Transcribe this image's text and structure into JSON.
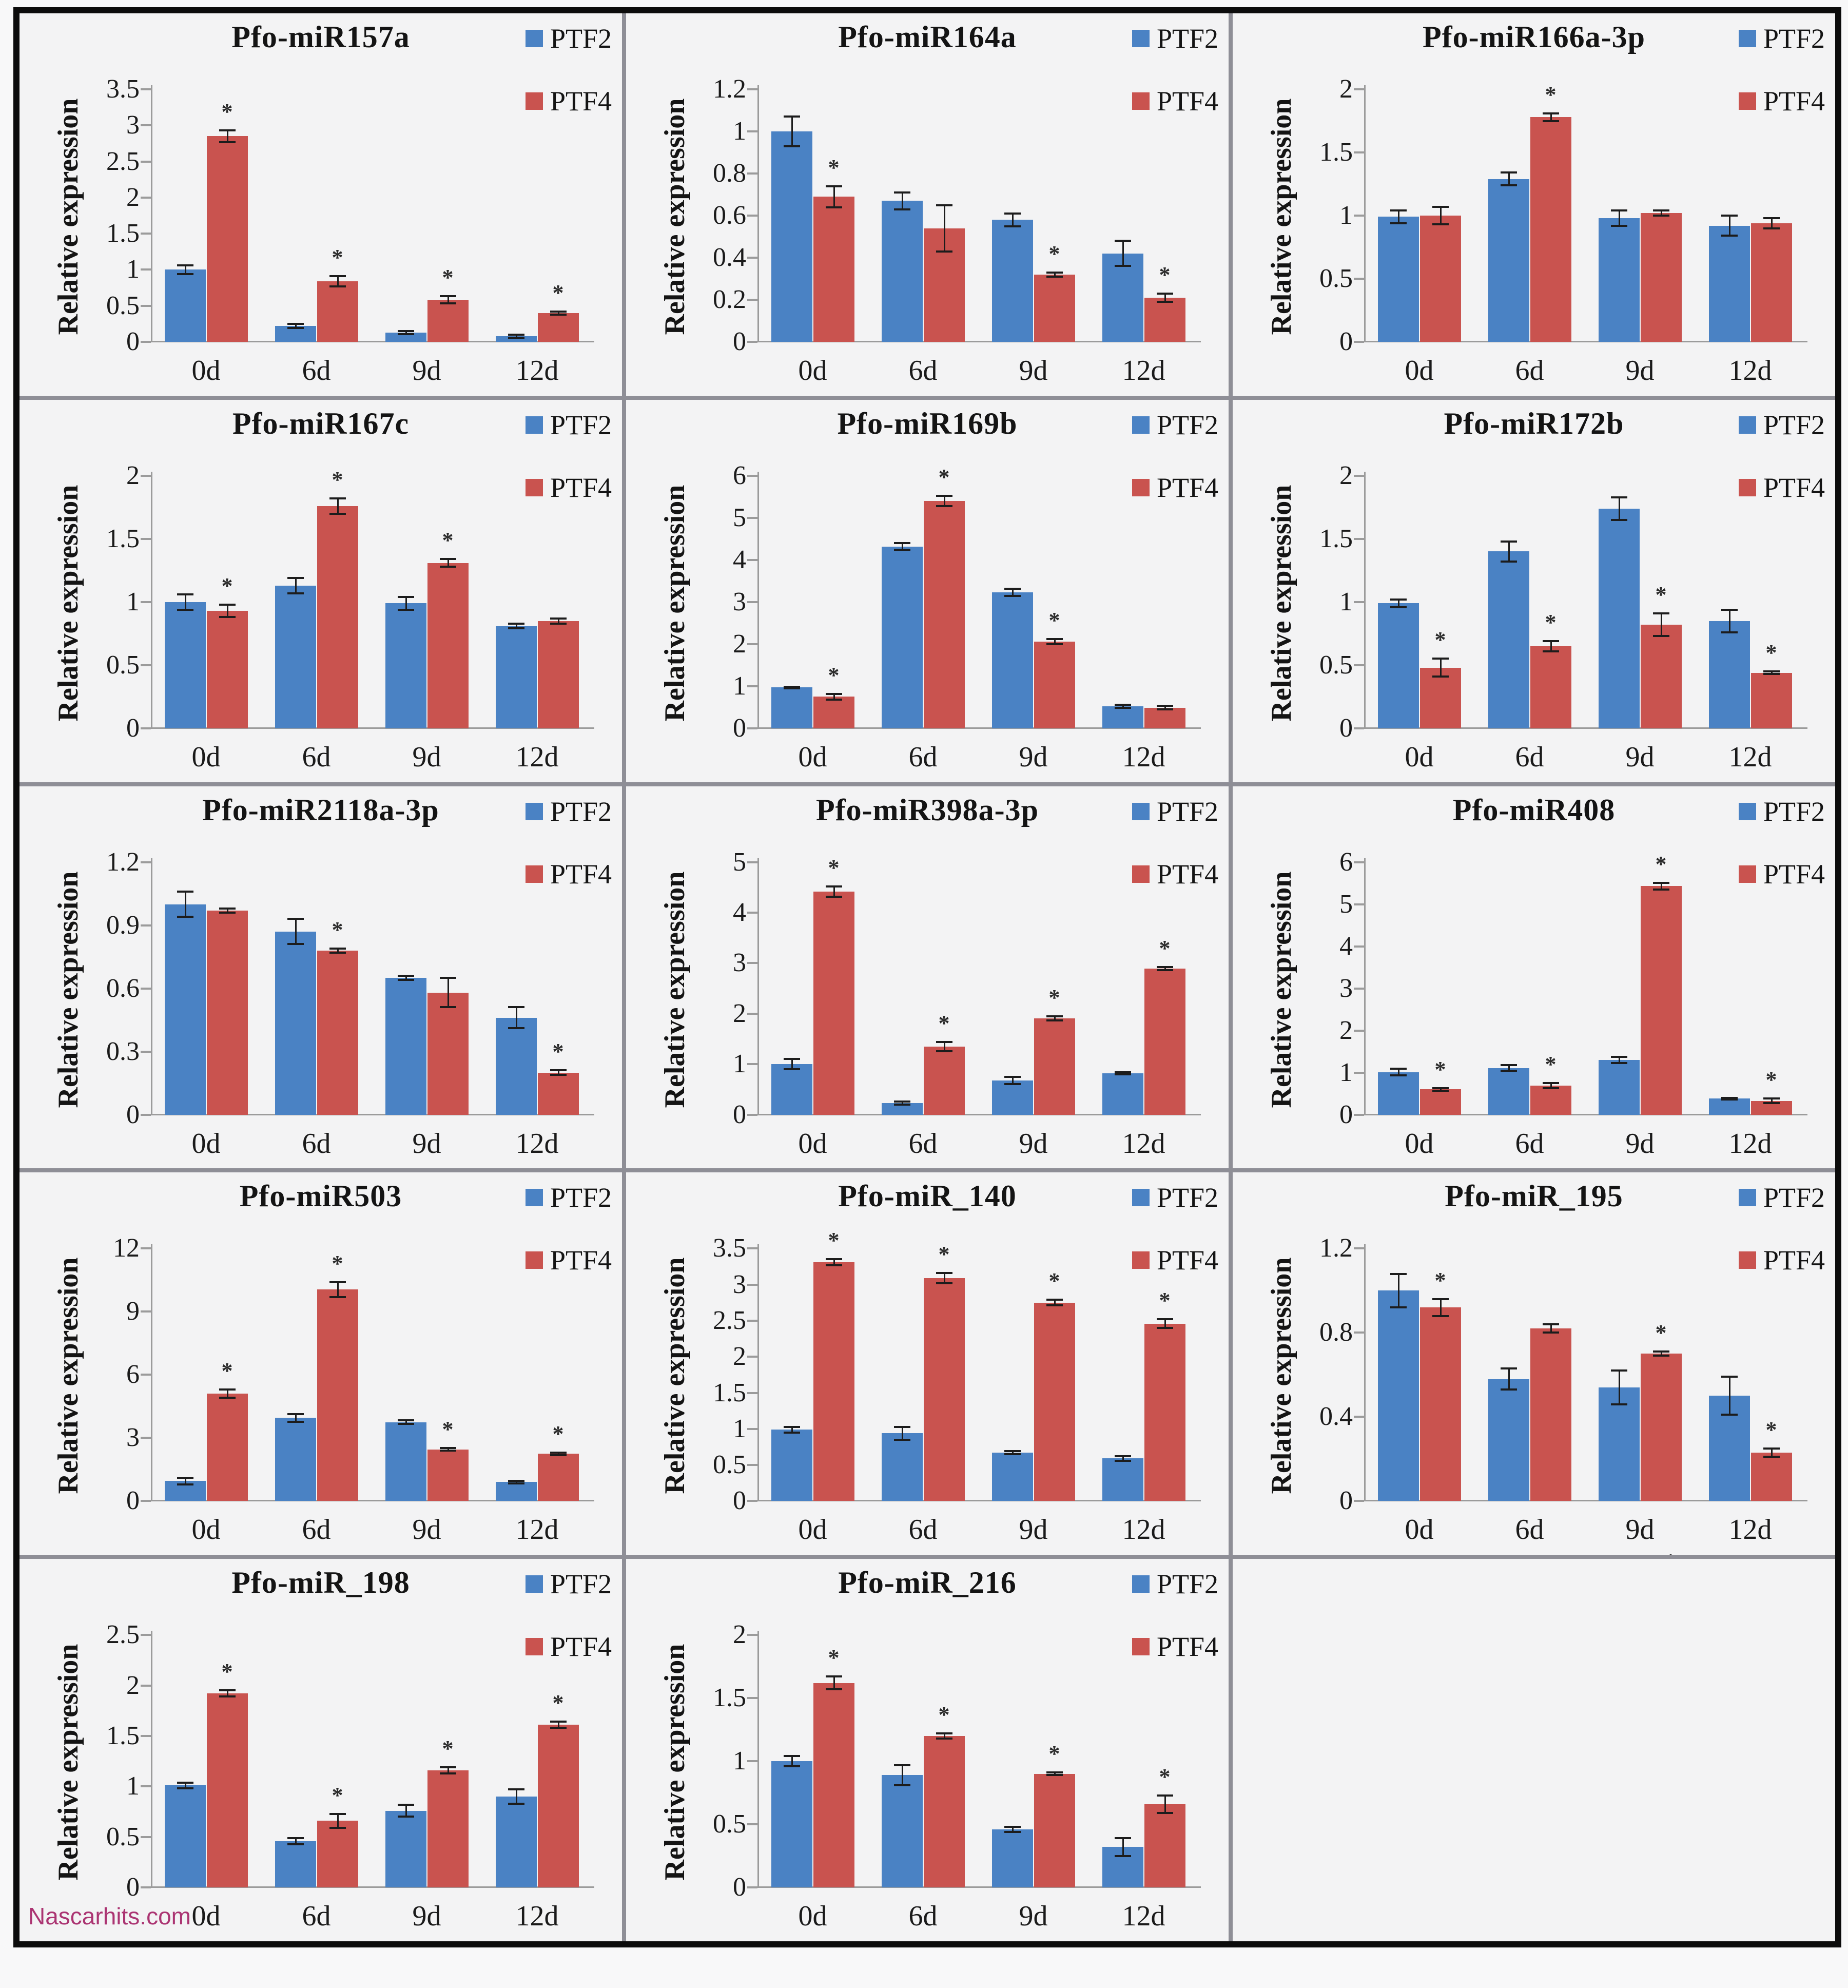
{
  "figure": {
    "watermark": "Nascarhits.com"
  },
  "colors": {
    "ptf2": "#4a82c4",
    "ptf4": "#c9534f",
    "watermark": "#ab3472",
    "cell_bg": "#f3f3f4",
    "grid_line": "#8e8e96",
    "outer_border": "#0c0c0c",
    "axis_gray": "#9b9b9b"
  },
  "legend_labels": [
    "PTF2",
    "PTF4"
  ],
  "significance_marker": "*",
  "chart_data": [
    {
      "type": "bar",
      "title": "Pfo-miR157a",
      "ylabel": "Relative expression",
      "xlabel": "",
      "categories": [
        "0d",
        "6d",
        "9d",
        "12d"
      ],
      "ylim": [
        0,
        3.5
      ],
      "yticks": [
        0,
        0.5,
        1,
        1.5,
        2,
        2.5,
        3,
        3.5
      ],
      "series": [
        {
          "name": "PTF2",
          "values": [
            1.0,
            0.22,
            0.13,
            0.08
          ],
          "errors": [
            0.06,
            0.03,
            0.02,
            0.02
          ],
          "sig": [
            false,
            false,
            false,
            false
          ]
        },
        {
          "name": "PTF4",
          "values": [
            2.85,
            0.84,
            0.58,
            0.4
          ],
          "errors": [
            0.08,
            0.07,
            0.05,
            0.02
          ],
          "sig": [
            true,
            true,
            true,
            true
          ]
        }
      ]
    },
    {
      "type": "bar",
      "title": "Pfo-miR164a",
      "ylabel": "Relative expression",
      "xlabel": "",
      "categories": [
        "0d",
        "6d",
        "9d",
        "12d"
      ],
      "ylim": [
        0,
        1.2
      ],
      "yticks": [
        0,
        0.2,
        0.4,
        0.6,
        0.8,
        1,
        1.2
      ],
      "series": [
        {
          "name": "PTF2",
          "values": [
            1.0,
            0.67,
            0.58,
            0.42
          ],
          "errors": [
            0.07,
            0.04,
            0.03,
            0.06
          ],
          "sig": [
            false,
            false,
            false,
            false
          ]
        },
        {
          "name": "PTF4",
          "values": [
            0.69,
            0.54,
            0.32,
            0.21
          ],
          "errors": [
            0.05,
            0.11,
            0.01,
            0.02
          ],
          "sig": [
            true,
            false,
            true,
            true
          ]
        }
      ]
    },
    {
      "type": "bar",
      "title": "Pfo-miR166a-3p",
      "ylabel": "Relative expression",
      "xlabel": "",
      "categories": [
        "0d",
        "6d",
        "9d",
        "12d"
      ],
      "ylim": [
        0,
        2
      ],
      "yticks": [
        0,
        0.5,
        1,
        1.5,
        2
      ],
      "series": [
        {
          "name": "PTF2",
          "values": [
            0.99,
            1.29,
            0.98,
            0.92
          ],
          "errors": [
            0.05,
            0.05,
            0.06,
            0.08
          ],
          "sig": [
            false,
            false,
            false,
            false
          ]
        },
        {
          "name": "PTF4",
          "values": [
            1.0,
            1.78,
            1.02,
            0.94
          ],
          "errors": [
            0.07,
            0.03,
            0.02,
            0.04
          ],
          "sig": [
            false,
            true,
            false,
            false
          ]
        }
      ]
    },
    {
      "type": "bar",
      "title": "Pfo-miR167c",
      "ylabel": "Relative expression",
      "xlabel": "",
      "categories": [
        "0d",
        "6d",
        "9d",
        "12d"
      ],
      "ylim": [
        0,
        2
      ],
      "yticks": [
        0,
        0.5,
        1,
        1.5,
        2
      ],
      "series": [
        {
          "name": "PTF2",
          "values": [
            1.0,
            1.13,
            0.99,
            0.81
          ],
          "errors": [
            0.06,
            0.06,
            0.05,
            0.02
          ],
          "sig": [
            false,
            false,
            false,
            false
          ]
        },
        {
          "name": "PTF4",
          "values": [
            0.93,
            1.76,
            1.31,
            0.85
          ],
          "errors": [
            0.05,
            0.06,
            0.03,
            0.02
          ],
          "sig": [
            true,
            true,
            true,
            false
          ]
        }
      ]
    },
    {
      "type": "bar",
      "title": "Pfo-miR169b",
      "ylabel": "Relative expression",
      "xlabel": "",
      "categories": [
        "0d",
        "6d",
        "9d",
        "12d"
      ],
      "ylim": [
        0,
        6
      ],
      "yticks": [
        0,
        1,
        2,
        3,
        4,
        5,
        6
      ],
      "series": [
        {
          "name": "PTF2",
          "values": [
            0.97,
            4.32,
            3.23,
            0.52
          ],
          "errors": [
            0.02,
            0.08,
            0.09,
            0.04
          ],
          "sig": [
            false,
            false,
            false,
            false
          ]
        },
        {
          "name": "PTF4",
          "values": [
            0.75,
            5.4,
            2.06,
            0.49
          ],
          "errors": [
            0.07,
            0.12,
            0.06,
            0.04
          ],
          "sig": [
            true,
            true,
            true,
            false
          ]
        }
      ]
    },
    {
      "type": "bar",
      "title": "Pfo-miR172b",
      "ylabel": "Relative expression",
      "xlabel": "",
      "categories": [
        "0d",
        "6d",
        "9d",
        "12d"
      ],
      "ylim": [
        0,
        2
      ],
      "yticks": [
        0,
        0.5,
        1,
        1.5,
        2
      ],
      "series": [
        {
          "name": "PTF2",
          "values": [
            0.99,
            1.4,
            1.74,
            0.85
          ],
          "errors": [
            0.03,
            0.08,
            0.09,
            0.09
          ],
          "sig": [
            false,
            false,
            false,
            false
          ]
        },
        {
          "name": "PTF4",
          "values": [
            0.48,
            0.65,
            0.82,
            0.44
          ],
          "errors": [
            0.07,
            0.04,
            0.09,
            0.01
          ],
          "sig": [
            true,
            true,
            true,
            true
          ]
        }
      ]
    },
    {
      "type": "bar",
      "title": "Pfo-miR2118a-3p",
      "ylabel": "Relative expression",
      "xlabel": "",
      "categories": [
        "0d",
        "6d",
        "9d",
        "12d"
      ],
      "ylim": [
        0,
        1.2
      ],
      "yticks": [
        0,
        0.3,
        0.6,
        0.9,
        1.2
      ],
      "series": [
        {
          "name": "PTF2",
          "values": [
            1.0,
            0.87,
            0.65,
            0.46
          ],
          "errors": [
            0.06,
            0.06,
            0.01,
            0.05
          ],
          "sig": [
            false,
            false,
            false,
            false
          ]
        },
        {
          "name": "PTF4",
          "values": [
            0.97,
            0.78,
            0.58,
            0.2
          ],
          "errors": [
            0.01,
            0.01,
            0.07,
            0.01
          ],
          "sig": [
            false,
            true,
            false,
            true
          ]
        }
      ]
    },
    {
      "type": "bar",
      "title": "Pfo-miR398a-3p",
      "ylabel": "Relative expression",
      "xlabel": "",
      "categories": [
        "0d",
        "6d",
        "9d",
        "12d"
      ],
      "ylim": [
        0,
        5
      ],
      "yticks": [
        0,
        1,
        2,
        3,
        4,
        5
      ],
      "series": [
        {
          "name": "PTF2",
          "values": [
            1.0,
            0.23,
            0.68,
            0.82
          ],
          "errors": [
            0.1,
            0.03,
            0.07,
            0.02
          ],
          "sig": [
            false,
            false,
            false,
            false
          ]
        },
        {
          "name": "PTF4",
          "values": [
            4.42,
            1.35,
            1.91,
            2.89
          ],
          "errors": [
            0.1,
            0.09,
            0.04,
            0.03
          ],
          "sig": [
            true,
            true,
            true,
            true
          ]
        }
      ]
    },
    {
      "type": "bar",
      "title": "Pfo-miR408",
      "ylabel": "Relative expression",
      "xlabel": "",
      "categories": [
        "0d",
        "6d",
        "9d",
        "12d"
      ],
      "ylim": [
        0,
        6
      ],
      "yticks": [
        0,
        1,
        2,
        3,
        4,
        5,
        6
      ],
      "series": [
        {
          "name": "PTF2",
          "values": [
            1.01,
            1.11,
            1.3,
            0.38
          ],
          "errors": [
            0.08,
            0.07,
            0.07,
            0.02
          ],
          "sig": [
            false,
            false,
            false,
            false
          ]
        },
        {
          "name": "PTF4",
          "values": [
            0.6,
            0.69,
            5.43,
            0.33
          ],
          "errors": [
            0.03,
            0.06,
            0.08,
            0.05
          ],
          "sig": [
            true,
            true,
            true,
            true
          ]
        }
      ]
    },
    {
      "type": "bar",
      "title": "Pfo-miR503",
      "ylabel": "Relative expression",
      "xlabel": "",
      "categories": [
        "0d",
        "6d",
        "9d",
        "12d"
      ],
      "ylim": [
        0,
        12
      ],
      "yticks": [
        0,
        3,
        6,
        9,
        12
      ],
      "series": [
        {
          "name": "PTF2",
          "values": [
            0.95,
            3.95,
            3.75,
            0.9
          ],
          "errors": [
            0.15,
            0.18,
            0.08,
            0.07
          ],
          "sig": [
            false,
            false,
            false,
            false
          ]
        },
        {
          "name": "PTF4",
          "values": [
            5.1,
            10.05,
            2.45,
            2.25
          ],
          "errors": [
            0.2,
            0.35,
            0.06,
            0.06
          ],
          "sig": [
            true,
            true,
            true,
            true
          ]
        }
      ]
    },
    {
      "type": "bar",
      "title": "Pfo-miR_140",
      "ylabel": "Relative expression",
      "xlabel": "",
      "categories": [
        "0d",
        "6d",
        "9d",
        "12d"
      ],
      "ylim": [
        0,
        3.5
      ],
      "yticks": [
        0,
        0.5,
        1,
        1.5,
        2,
        2.5,
        3,
        3.5
      ],
      "series": [
        {
          "name": "PTF2",
          "values": [
            0.99,
            0.94,
            0.67,
            0.59
          ],
          "errors": [
            0.04,
            0.09,
            0.02,
            0.03
          ],
          "sig": [
            false,
            false,
            false,
            false
          ]
        },
        {
          "name": "PTF4",
          "values": [
            3.31,
            3.09,
            2.75,
            2.46
          ],
          "errors": [
            0.04,
            0.07,
            0.04,
            0.06
          ],
          "sig": [
            true,
            true,
            true,
            true
          ]
        }
      ]
    },
    {
      "type": "bar",
      "title": "Pfo-miR_195",
      "ylabel": "Relative expression",
      "xlabel": "",
      "categories": [
        "0d",
        "6d",
        "9d",
        "12d"
      ],
      "ylim": [
        0,
        1.2
      ],
      "yticks": [
        0,
        0.4,
        0.8,
        1.2
      ],
      "series": [
        {
          "name": "PTF2",
          "values": [
            1.0,
            0.58,
            0.54,
            0.5
          ],
          "errors": [
            0.08,
            0.05,
            0.08,
            0.09
          ],
          "sig": [
            false,
            false,
            false,
            false
          ]
        },
        {
          "name": "PTF4",
          "values": [
            0.92,
            0.82,
            0.7,
            0.23
          ],
          "errors": [
            0.04,
            0.02,
            0.01,
            0.02
          ],
          "sig": [
            true,
            false,
            true,
            true
          ]
        }
      ],
      "note": {
        "text": ".",
        "under": "9d"
      }
    },
    {
      "type": "bar",
      "title": "Pfo-miR_198",
      "ylabel": "Relative expression",
      "xlabel": "",
      "categories": [
        "0d",
        "6d",
        "9d",
        "12d"
      ],
      "ylim": [
        0,
        2.5
      ],
      "yticks": [
        0,
        0.5,
        1,
        1.5,
        2,
        2.5
      ],
      "series": [
        {
          "name": "PTF2",
          "values": [
            1.01,
            0.46,
            0.76,
            0.9
          ],
          "errors": [
            0.03,
            0.03,
            0.06,
            0.07
          ],
          "sig": [
            false,
            false,
            false,
            false
          ]
        },
        {
          "name": "PTF4",
          "values": [
            1.92,
            0.66,
            1.16,
            1.61
          ],
          "errors": [
            0.03,
            0.07,
            0.03,
            0.03
          ],
          "sig": [
            true,
            true,
            true,
            true
          ]
        }
      ]
    },
    {
      "type": "bar",
      "title": "Pfo-miR_216",
      "ylabel": "Relative expression",
      "xlabel": "",
      "categories": [
        "0d",
        "6d",
        "9d",
        "12d"
      ],
      "ylim": [
        0,
        2
      ],
      "yticks": [
        0,
        0.5,
        1,
        1.5,
        2
      ],
      "series": [
        {
          "name": "PTF2",
          "values": [
            1.0,
            0.89,
            0.46,
            0.32
          ],
          "errors": [
            0.04,
            0.08,
            0.02,
            0.07
          ],
          "sig": [
            false,
            false,
            false,
            false
          ]
        },
        {
          "name": "PTF4",
          "values": [
            1.62,
            1.2,
            0.9,
            0.66
          ],
          "errors": [
            0.05,
            0.02,
            0.01,
            0.07
          ],
          "sig": [
            true,
            true,
            true,
            true
          ]
        }
      ]
    }
  ]
}
